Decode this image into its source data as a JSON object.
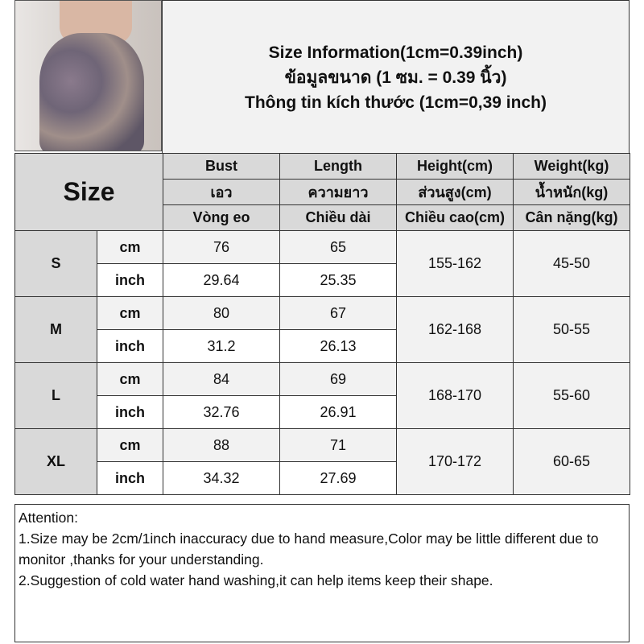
{
  "title": {
    "line1": "Size Information(1cm=0.39inch)",
    "line2": "ข้อมูลขนาด (1 ซม. = 0.39 นิ้ว)",
    "line3": "Thông tin kích thước (1cm=0,39 inch)"
  },
  "table": {
    "size_header": "Size",
    "header_rows": [
      [
        "Bust",
        "Length",
        "Height(cm)",
        "Weight(kg)"
      ],
      [
        "เอว",
        "ความยาว",
        "ส่วนสูง(cm)",
        "น้ำหนัก(kg)"
      ],
      [
        "Vòng eo",
        "Chiều dài",
        "Chiều cao(cm)",
        "Cân nặng(kg)"
      ]
    ],
    "rows": [
      {
        "size": "S",
        "cm_label": "cm",
        "inch_label": "inch",
        "bust_cm": "76",
        "length_cm": "65",
        "bust_inch": "29.64",
        "length_inch": "25.35",
        "height": "155-162",
        "weight": "45-50"
      },
      {
        "size": "M",
        "cm_label": "cm",
        "inch_label": "inch",
        "bust_cm": "80",
        "length_cm": "67",
        "bust_inch": "31.2",
        "length_inch": "26.13",
        "height": "162-168",
        "weight": "50-55"
      },
      {
        "size": "L",
        "cm_label": "cm",
        "inch_label": "inch",
        "bust_cm": "84",
        "length_cm": "69",
        "bust_inch": "32.76",
        "length_inch": "26.91",
        "height": "168-170",
        "weight": "55-60"
      },
      {
        "size": "XL",
        "cm_label": "cm",
        "inch_label": "inch",
        "bust_cm": "88",
        "length_cm": "71",
        "bust_inch": "34.32",
        "length_inch": "27.69",
        "height": "170-172",
        "weight": "60-65"
      }
    ]
  },
  "attention": {
    "heading": "Attention:",
    "notes": [
      "1.Size may be 2cm/1inch inaccuracy due to hand measure,Color may be little different due to monitor ,thanks for your understanding.",
      "2.Suggestion of cold water hand washing,it can help items keep their shape."
    ]
  },
  "colors": {
    "header_bg": "#d9d9d9",
    "cm_row_bg": "#f2f2f2",
    "inch_row_bg": "#ffffff",
    "border": "#333333"
  }
}
